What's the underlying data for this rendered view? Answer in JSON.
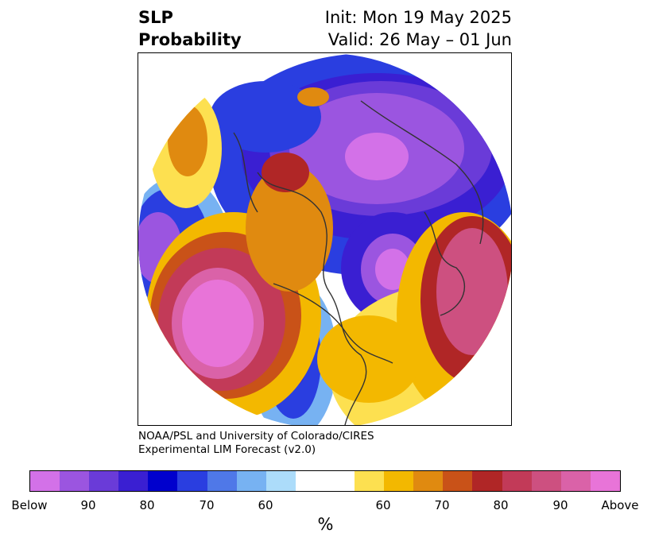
{
  "title": {
    "left_line1": "SLP",
    "left_line2": "Probability",
    "right_line1": "Init: Mon 19 May 2025",
    "right_line2": "Valid: 26 May – 01 Jun"
  },
  "credit": {
    "line1": "NOAA/PSL and University of Colorado/CIRES",
    "line2": "Experimental LIM Forecast (v2.0)"
  },
  "colorbar": {
    "colors": [
      "#d371e8",
      "#9b55e0",
      "#6a3bd8",
      "#3a1fd2",
      "#0000cd",
      "#2a3ee0",
      "#4f78e8",
      "#77b2f2",
      "#acdcfa",
      "#ffffff",
      "#ffffff",
      "#fde050",
      "#f3b800",
      "#e08a10",
      "#c95218",
      "#b02626",
      "#c23a58",
      "#cd5080",
      "#da62a8",
      "#e874d8"
    ],
    "labels": [
      "Below",
      "90",
      "80",
      "70",
      "60",
      "60",
      "70",
      "80",
      "90",
      "Above"
    ],
    "unit": "%"
  },
  "map": {
    "legend_key": {
      "below": "blue/purple",
      "above": "yellow/red/magenta"
    }
  }
}
